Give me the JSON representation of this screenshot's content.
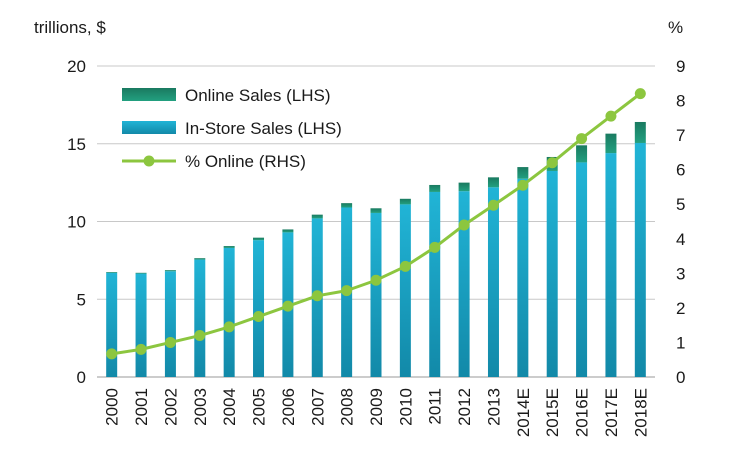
{
  "chart_data": {
    "type": "bar",
    "categories": [
      "2000",
      "2001",
      "2002",
      "2003",
      "2004",
      "2005",
      "2006",
      "2007",
      "2008",
      "2009",
      "2010",
      "2011",
      "2012",
      "2013",
      "2014E",
      "2015E",
      "2016E",
      "2017E",
      "2018E"
    ],
    "series": [
      {
        "name": "In-Store Sales (LHS)",
        "kind": "bar-stacked",
        "axis": "left",
        "color": "#1aa7c8",
        "values": [
          6.7,
          6.65,
          6.8,
          7.55,
          8.3,
          8.8,
          9.3,
          10.2,
          10.9,
          10.55,
          11.1,
          11.9,
          11.95,
          12.2,
          12.75,
          13.25,
          13.8,
          14.4,
          15.05
        ]
      },
      {
        "name": "Online Sales (LHS)",
        "kind": "bar-stacked",
        "axis": "left",
        "color": "#1f8a6e",
        "values": [
          0.05,
          0.05,
          0.07,
          0.09,
          0.12,
          0.16,
          0.19,
          0.24,
          0.28,
          0.3,
          0.36,
          0.45,
          0.55,
          0.64,
          0.75,
          0.9,
          1.1,
          1.25,
          1.35
        ]
      },
      {
        "name": "% Online (RHS)",
        "kind": "line",
        "axis": "right",
        "color": "#8cc63f",
        "values": [
          0.67,
          0.8,
          1.0,
          1.2,
          1.45,
          1.75,
          2.05,
          2.35,
          2.5,
          2.8,
          3.2,
          3.75,
          4.4,
          4.97,
          5.55,
          6.2,
          6.9,
          7.55,
          8.2
        ]
      }
    ],
    "left_axis": {
      "label": "trillions, $",
      "min": 0,
      "max": 20,
      "ticks": [
        0,
        5,
        10,
        15,
        20
      ]
    },
    "right_axis": {
      "label": "%",
      "min": 0,
      "max": 9,
      "ticks": [
        0,
        1,
        2,
        3,
        4,
        5,
        6,
        7,
        8,
        9
      ]
    },
    "grid": true,
    "legend": {
      "placement": "top-left",
      "order": [
        "Online Sales (LHS)",
        "In-Store Sales (LHS)",
        "% Online (RHS)"
      ]
    },
    "gridline_color": "#c8c8c8"
  }
}
